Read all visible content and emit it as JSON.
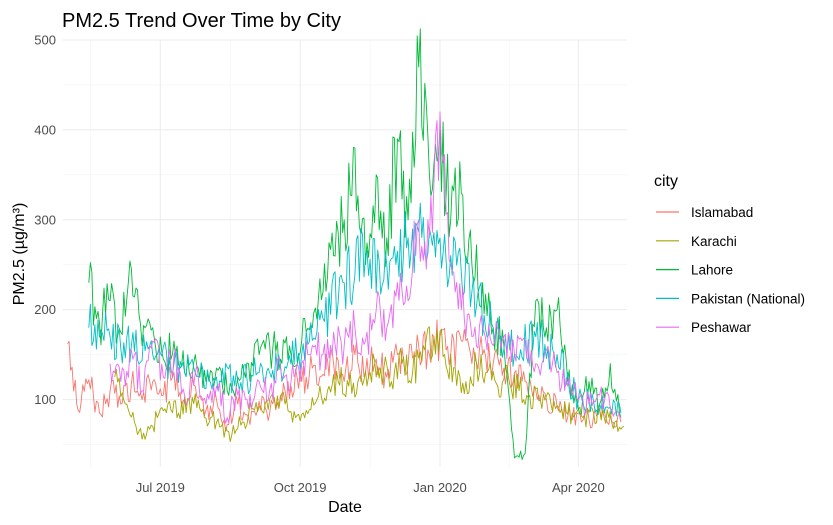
{
  "chart_data": {
    "type": "line",
    "title": "PM2.5 Trend Over Time by City",
    "xlabel": "Date",
    "ylabel": "PM2.5 (µg/m³)",
    "xlim": [
      "2019-04-28",
      "2020-05-03"
    ],
    "ylim": [
      25,
      500
    ],
    "x_ticks": [
      {
        "date": "2019-07-01",
        "label": "Jul 2019"
      },
      {
        "date": "2019-10-01",
        "label": "Oct 2019"
      },
      {
        "date": "2020-01-01",
        "label": "Jan 2020"
      },
      {
        "date": "2020-04-01",
        "label": "Apr 2020"
      }
    ],
    "y_ticks": [
      100,
      200,
      300,
      400,
      500
    ],
    "grid": true,
    "legend": {
      "title": "city",
      "position": "right"
    },
    "series": [
      {
        "name": "Islamabad",
        "color": "#F8766D",
        "points": [
          [
            "2019-05-01",
            162
          ],
          [
            "2019-05-08",
            88
          ],
          [
            "2019-05-15",
            122
          ],
          [
            "2019-05-22",
            85
          ],
          [
            "2019-05-29",
            110
          ],
          [
            "2019-06-05",
            95
          ],
          [
            "2019-06-12",
            118
          ],
          [
            "2019-06-19",
            100
          ],
          [
            "2019-06-26",
            120
          ],
          [
            "2019-07-03",
            105
          ],
          [
            "2019-07-10",
            130
          ],
          [
            "2019-07-17",
            98
          ],
          [
            "2019-07-24",
            115
          ],
          [
            "2019-07-31",
            88
          ],
          [
            "2019-08-07",
            100
          ],
          [
            "2019-08-14",
            72
          ],
          [
            "2019-08-21",
            95
          ],
          [
            "2019-08-28",
            80
          ],
          [
            "2019-09-04",
            98
          ],
          [
            "2019-09-11",
            85
          ],
          [
            "2019-09-18",
            105
          ],
          [
            "2019-09-25",
            115
          ],
          [
            "2019-10-02",
            120
          ],
          [
            "2019-10-09",
            135
          ],
          [
            "2019-10-16",
            128
          ],
          [
            "2019-10-23",
            140
          ],
          [
            "2019-10-30",
            120
          ],
          [
            "2019-11-06",
            150
          ],
          [
            "2019-11-13",
            130
          ],
          [
            "2019-11-20",
            145
          ],
          [
            "2019-11-27",
            125
          ],
          [
            "2019-12-04",
            150
          ],
          [
            "2019-12-11",
            140
          ],
          [
            "2019-12-18",
            160
          ],
          [
            "2019-12-25",
            150
          ],
          [
            "2020-01-01",
            170
          ],
          [
            "2020-01-08",
            150
          ],
          [
            "2020-01-15",
            165
          ],
          [
            "2020-01-22",
            140
          ],
          [
            "2020-01-29",
            150
          ],
          [
            "2020-02-05",
            140
          ],
          [
            "2020-02-12",
            135
          ],
          [
            "2020-02-19",
            130
          ],
          [
            "2020-02-26",
            120
          ],
          [
            "2020-03-04",
            110
          ],
          [
            "2020-03-11",
            100
          ],
          [
            "2020-03-18",
            92
          ],
          [
            "2020-03-25",
            80
          ],
          [
            "2020-04-01",
            85
          ],
          [
            "2020-04-08",
            78
          ],
          [
            "2020-04-15",
            90
          ],
          [
            "2020-04-22",
            82
          ],
          [
            "2020-04-29",
            75
          ]
        ]
      },
      {
        "name": "Karachi",
        "color": "#A3A500",
        "points": [
          [
            "2019-06-01",
            125
          ],
          [
            "2019-06-08",
            95
          ],
          [
            "2019-06-15",
            70
          ],
          [
            "2019-06-22",
            62
          ],
          [
            "2019-06-29",
            80
          ],
          [
            "2019-07-06",
            95
          ],
          [
            "2019-07-13",
            85
          ],
          [
            "2019-07-20",
            100
          ],
          [
            "2019-07-27",
            90
          ],
          [
            "2019-08-03",
            80
          ],
          [
            "2019-08-10",
            70
          ],
          [
            "2019-08-17",
            60
          ],
          [
            "2019-08-24",
            75
          ],
          [
            "2019-08-31",
            90
          ],
          [
            "2019-09-07",
            85
          ],
          [
            "2019-09-14",
            100
          ],
          [
            "2019-09-21",
            95
          ],
          [
            "2019-09-28",
            80
          ],
          [
            "2019-10-05",
            88
          ],
          [
            "2019-10-12",
            100
          ],
          [
            "2019-10-19",
            110
          ],
          [
            "2019-10-26",
            120
          ],
          [
            "2019-11-02",
            115
          ],
          [
            "2019-11-09",
            125
          ],
          [
            "2019-11-16",
            130
          ],
          [
            "2019-11-23",
            135
          ],
          [
            "2019-11-30",
            120
          ],
          [
            "2019-12-07",
            140
          ],
          [
            "2019-12-14",
            130
          ],
          [
            "2019-12-21",
            160
          ],
          [
            "2019-12-28",
            170
          ],
          [
            "2020-01-04",
            150
          ],
          [
            "2020-01-11",
            135
          ],
          [
            "2020-01-18",
            120
          ],
          [
            "2020-01-25",
            140
          ],
          [
            "2020-02-01",
            130
          ],
          [
            "2020-02-08",
            115
          ],
          [
            "2020-02-15",
            125
          ],
          [
            "2020-02-22",
            110
          ],
          [
            "2020-02-29",
            105
          ],
          [
            "2020-03-07",
            100
          ],
          [
            "2020-03-14",
            95
          ],
          [
            "2020-03-21",
            90
          ],
          [
            "2020-03-28",
            85
          ],
          [
            "2020-04-04",
            80
          ],
          [
            "2020-04-11",
            85
          ],
          [
            "2020-04-18",
            80
          ],
          [
            "2020-04-25",
            75
          ],
          [
            "2020-05-01",
            70
          ]
        ]
      },
      {
        "name": "Lahore",
        "color": "#00BA38",
        "points": [
          [
            "2019-05-15",
            230
          ],
          [
            "2019-05-22",
            185
          ],
          [
            "2019-05-29",
            210
          ],
          [
            "2019-06-05",
            175
          ],
          [
            "2019-06-12",
            245
          ],
          [
            "2019-06-19",
            160
          ],
          [
            "2019-06-26",
            180
          ],
          [
            "2019-07-03",
            145
          ],
          [
            "2019-07-10",
            165
          ],
          [
            "2019-07-17",
            130
          ],
          [
            "2019-07-24",
            150
          ],
          [
            "2019-07-31",
            120
          ],
          [
            "2019-08-07",
            135
          ],
          [
            "2019-08-14",
            110
          ],
          [
            "2019-08-21",
            125
          ],
          [
            "2019-08-28",
            140
          ],
          [
            "2019-09-04",
            150
          ],
          [
            "2019-09-11",
            160
          ],
          [
            "2019-09-18",
            145
          ],
          [
            "2019-09-25",
            150
          ],
          [
            "2019-10-02",
            165
          ],
          [
            "2019-10-09",
            180
          ],
          [
            "2019-10-16",
            220
          ],
          [
            "2019-10-23",
            260
          ],
          [
            "2019-10-30",
            300
          ],
          [
            "2019-11-06",
            380
          ],
          [
            "2019-11-13",
            250
          ],
          [
            "2019-11-20",
            350
          ],
          [
            "2019-11-27",
            280
          ],
          [
            "2019-12-04",
            390
          ],
          [
            "2019-12-11",
            300
          ],
          [
            "2019-12-18",
            470
          ],
          [
            "2019-12-25",
            350
          ],
          [
            "2020-01-01",
            400
          ],
          [
            "2020-01-08",
            300
          ],
          [
            "2020-01-15",
            330
          ],
          [
            "2020-01-22",
            250
          ],
          [
            "2020-01-29",
            230
          ],
          [
            "2020-02-05",
            180
          ],
          [
            "2020-02-12",
            160
          ],
          [
            "2020-02-19",
            35
          ],
          [
            "2020-02-26",
            40
          ],
          [
            "2020-03-04",
            210
          ],
          [
            "2020-03-11",
            180
          ],
          [
            "2020-03-18",
            200
          ],
          [
            "2020-03-25",
            120
          ],
          [
            "2020-04-01",
            90
          ],
          [
            "2020-04-08",
            120
          ],
          [
            "2020-04-15",
            95
          ],
          [
            "2020-04-22",
            140
          ],
          [
            "2020-04-29",
            80
          ]
        ]
      },
      {
        "name": "Pakistan (National)",
        "color": "#00BFC4",
        "points": [
          [
            "2019-05-15",
            180
          ],
          [
            "2019-05-29",
            170
          ],
          [
            "2019-06-12",
            160
          ],
          [
            "2019-06-26",
            150
          ],
          [
            "2019-07-10",
            140
          ],
          [
            "2019-07-24",
            130
          ],
          [
            "2019-08-07",
            125
          ],
          [
            "2019-08-21",
            120
          ],
          [
            "2019-09-04",
            130
          ],
          [
            "2019-09-18",
            140
          ],
          [
            "2019-10-02",
            150
          ],
          [
            "2019-10-16",
            190
          ],
          [
            "2019-10-30",
            230
          ],
          [
            "2019-11-13",
            260
          ],
          [
            "2019-11-27",
            250
          ],
          [
            "2019-12-11",
            280
          ],
          [
            "2019-12-25",
            290
          ],
          [
            "2020-01-08",
            260
          ],
          [
            "2020-01-22",
            220
          ],
          [
            "2020-02-05",
            180
          ],
          [
            "2020-02-19",
            150
          ],
          [
            "2020-03-04",
            170
          ],
          [
            "2020-03-18",
            150
          ],
          [
            "2020-04-01",
            100
          ],
          [
            "2020-04-15",
            95
          ],
          [
            "2020-04-29",
            85
          ]
        ]
      },
      {
        "name": "Peshawar",
        "color": "#E76BF3",
        "points": [
          [
            "2019-05-29",
            140
          ],
          [
            "2019-06-05",
            120
          ],
          [
            "2019-06-12",
            155
          ],
          [
            "2019-06-19",
            110
          ],
          [
            "2019-06-26",
            165
          ],
          [
            "2019-07-03",
            125
          ],
          [
            "2019-07-10",
            150
          ],
          [
            "2019-07-17",
            105
          ],
          [
            "2019-07-24",
            130
          ],
          [
            "2019-07-31",
            95
          ],
          [
            "2019-08-07",
            115
          ],
          [
            "2019-08-14",
            80
          ],
          [
            "2019-08-21",
            105
          ],
          [
            "2019-08-28",
            90
          ],
          [
            "2019-09-04",
            120
          ],
          [
            "2019-09-11",
            110
          ],
          [
            "2019-09-18",
            135
          ],
          [
            "2019-09-25",
            120
          ],
          [
            "2019-10-02",
            140
          ],
          [
            "2019-10-09",
            160
          ],
          [
            "2019-10-16",
            150
          ],
          [
            "2019-10-23",
            175
          ],
          [
            "2019-10-30",
            160
          ],
          [
            "2019-11-06",
            180
          ],
          [
            "2019-11-13",
            165
          ],
          [
            "2019-11-20",
            200
          ],
          [
            "2019-11-27",
            180
          ],
          [
            "2019-12-04",
            230
          ],
          [
            "2019-12-11",
            210
          ],
          [
            "2019-12-18",
            300
          ],
          [
            "2019-12-25",
            280
          ],
          [
            "2020-01-01",
            420
          ],
          [
            "2020-01-08",
            250
          ],
          [
            "2020-01-15",
            200
          ],
          [
            "2020-01-22",
            170
          ],
          [
            "2020-01-29",
            180
          ],
          [
            "2020-02-05",
            160
          ],
          [
            "2020-02-12",
            170
          ],
          [
            "2020-02-19",
            150
          ],
          [
            "2020-02-26",
            165
          ],
          [
            "2020-03-04",
            140
          ],
          [
            "2020-03-11",
            155
          ],
          [
            "2020-03-18",
            130
          ],
          [
            "2020-03-25",
            115
          ],
          [
            "2020-04-01",
            100
          ],
          [
            "2020-04-08",
            95
          ],
          [
            "2020-04-15",
            105
          ],
          [
            "2020-04-22",
            90
          ],
          [
            "2020-04-29",
            80
          ]
        ]
      }
    ]
  }
}
